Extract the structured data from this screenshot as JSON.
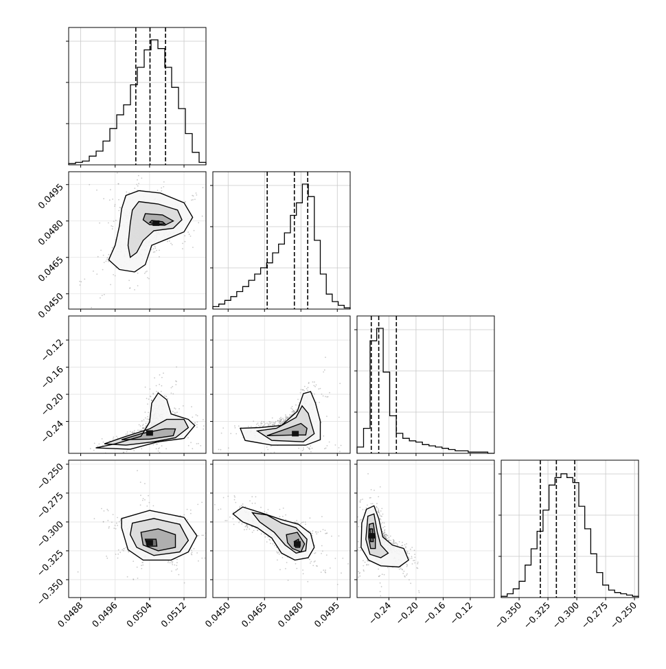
{
  "chart_data": {
    "type": "corner-plot",
    "parameters": [
      {
        "range": [
          0.04852,
          0.05171
        ],
        "ticks": [
          0.0488,
          0.0496,
          0.0504,
          0.0512
        ],
        "tick_labels": [
          "0.0488",
          "0.0496",
          "0.0504",
          "0.0512"
        ],
        "quantiles": [
          0.05008,
          0.05041,
          0.05077
        ],
        "hist_bins": [
          0.01,
          0.02,
          0.03,
          0.07,
          0.11,
          0.19,
          0.29,
          0.4,
          0.48,
          0.64,
          0.78,
          0.92,
          1.0,
          0.93,
          0.78,
          0.62,
          0.45,
          0.25,
          0.1,
          0.02
        ],
        "hist_yticks": [
          0.3,
          0.6,
          0.9
        ]
      },
      {
        "range": [
          0.04437,
          0.05003
        ],
        "ticks": [
          0.045,
          0.0465,
          0.048,
          0.0495
        ],
        "tick_labels": [
          "0.0450",
          "0.0465",
          "0.0480",
          "0.0495"
        ],
        "quantiles": [
          0.04661,
          0.04773,
          0.04828
        ],
        "hist_bins": [
          0.02,
          0.04,
          0.07,
          0.1,
          0.14,
          0.18,
          0.23,
          0.28,
          0.33,
          0.37,
          0.45,
          0.52,
          0.61,
          0.75,
          0.85,
          1.0,
          0.9,
          0.55,
          0.28,
          0.12,
          0.06,
          0.03,
          0.01
        ],
        "hist_yticks": [
          0.3,
          0.6,
          0.9
        ]
      },
      {
        "range": [
          -0.287,
          -0.0845
        ],
        "ticks": [
          -0.24,
          -0.2,
          -0.16,
          -0.12
        ],
        "tick_labels": [
          "−0.24",
          "−0.20",
          "−0.16",
          "−0.12"
        ],
        "quantiles": [
          -0.266,
          -0.255,
          -0.229
        ],
        "hist_bins": [
          0.05,
          0.2,
          0.9,
          1.0,
          0.65,
          0.3,
          0.16,
          0.12,
          0.1,
          0.09,
          0.07,
          0.06,
          0.05,
          0.04,
          0.03,
          0.02,
          0.02,
          0.01,
          0.01,
          0.01,
          0.0
        ],
        "hist_yticks": [
          0.3,
          0.6,
          0.9
        ]
      },
      {
        "range": [
          -0.3655,
          -0.2465
        ],
        "ticks": [
          -0.35,
          -0.325,
          -0.3,
          -0.275,
          -0.25
        ],
        "tick_labels": [
          "−0.350",
          "−0.325",
          "−0.300",
          "−0.275",
          "−0.250"
        ],
        "quantiles": [
          -0.3316,
          -0.3177,
          -0.3018
        ],
        "hist_bins": [
          0.01,
          0.03,
          0.07,
          0.13,
          0.26,
          0.39,
          0.53,
          0.7,
          0.9,
          0.96,
          0.99,
          0.96,
          0.92,
          0.73,
          0.55,
          0.35,
          0.2,
          0.1,
          0.06,
          0.04,
          0.03,
          0.02,
          0.01
        ],
        "hist_yticks": [
          0.3,
          0.6,
          0.9
        ]
      }
    ],
    "pairs": [
      {
        "row": 1,
        "col": 0,
        "mode": [
          0.05055,
          0.04791
        ],
        "contours": [
          [
            [
              0.05015,
              0.04925
            ],
            [
              0.05065,
              0.04915
            ],
            [
              0.0512,
              0.04875
            ],
            [
              0.0514,
              0.04815
            ],
            [
              0.0512,
              0.04755
            ],
            [
              0.0508,
              0.04725
            ],
            [
              0.05045,
              0.047
            ],
            [
              0.0503,
              0.0462
            ],
            [
              0.05005,
              0.0459
            ],
            [
              0.0497,
              0.046
            ],
            [
              0.04945,
              0.0464
            ],
            [
              0.0496,
              0.047
            ],
            [
              0.0497,
              0.0478
            ],
            [
              0.04975,
              0.0485
            ],
            [
              0.04985,
              0.04905
            ]
          ],
          [
            [
              0.05015,
              0.0488
            ],
            [
              0.0506,
              0.0487
            ],
            [
              0.05105,
              0.04845
            ],
            [
              0.05115,
              0.04805
            ],
            [
              0.05095,
              0.0477
            ],
            [
              0.0505,
              0.0476
            ],
            [
              0.05025,
              0.0472
            ],
            [
              0.0501,
              0.0467
            ],
            [
              0.04995,
              0.0465
            ],
            [
              0.0499,
              0.047
            ],
            [
              0.04995,
              0.0479
            ],
            [
              0.05,
              0.04845
            ]
          ],
          [
            [
              0.0503,
              0.0483
            ],
            [
              0.0507,
              0.04825
            ],
            [
              0.05095,
              0.048
            ],
            [
              0.05075,
              0.04782
            ],
            [
              0.0504,
              0.04785
            ],
            [
              0.05025,
              0.04805
            ]
          ],
          [
            [
              0.05045,
              0.04802
            ],
            [
              0.0507,
              0.04797
            ],
            [
              0.05076,
              0.04788
            ],
            [
              0.05055,
              0.04786
            ],
            [
              0.0504,
              0.04794
            ]
          ]
        ]
      },
      {
        "row": 2,
        "col": 0,
        "mode": [
          0.0504,
          -0.257
        ],
        "contours": [
          [
            [
              0.04915,
              -0.279
            ],
            [
              0.0496,
              -0.273
            ],
            [
              0.0502,
              -0.262
            ],
            [
              0.0504,
              -0.241
            ],
            [
              0.05045,
              -0.213
            ],
            [
              0.0506,
              -0.198
            ],
            [
              0.0508,
              -0.208
            ],
            [
              0.0509,
              -0.229
            ],
            [
              0.0513,
              -0.237
            ],
            [
              0.05145,
              -0.246
            ],
            [
              0.0512,
              -0.265
            ],
            [
              0.0506,
              -0.27
            ],
            [
              0.04995,
              -0.281
            ]
          ],
          [
            [
              0.04935,
              -0.273
            ],
            [
              0.04985,
              -0.262
            ],
            [
              0.0504,
              -0.251
            ],
            [
              0.0508,
              -0.237
            ],
            [
              0.0512,
              -0.237
            ],
            [
              0.0513,
              -0.249
            ],
            [
              0.051,
              -0.264
            ],
            [
              0.0505,
              -0.27
            ],
            [
              0.04985,
              -0.275
            ]
          ],
          [
            [
              0.04975,
              -0.267
            ],
            [
              0.0502,
              -0.258
            ],
            [
              0.05075,
              -0.251
            ],
            [
              0.051,
              -0.251
            ],
            [
              0.05095,
              -0.261
            ],
            [
              0.0504,
              -0.266
            ]
          ]
        ]
      },
      {
        "row": 2,
        "col": 1,
        "mode": [
          0.04777,
          -0.258
        ],
        "contours": [
          [
            [
              0.0455,
              -0.25
            ],
            [
              0.0457,
              -0.268
            ],
            [
              0.0468,
              -0.275
            ],
            [
              0.0482,
              -0.275
            ],
            [
              0.0488,
              -0.267
            ],
            [
              0.0488,
              -0.24
            ],
            [
              0.0486,
              -0.213
            ],
            [
              0.0484,
              -0.196
            ],
            [
              0.0481,
              -0.199
            ],
            [
              0.04785,
              -0.225
            ],
            [
              0.0472,
              -0.246
            ],
            [
              0.0463,
              -0.249
            ]
          ],
          [
            [
              0.0462,
              -0.254
            ],
            [
              0.0468,
              -0.268
            ],
            [
              0.0481,
              -0.27
            ],
            [
              0.04855,
              -0.258
            ],
            [
              0.0483,
              -0.228
            ],
            [
              0.04805,
              -0.217
            ],
            [
              0.0478,
              -0.234
            ],
            [
              0.047,
              -0.25
            ]
          ],
          [
            [
              0.0466,
              -0.261
            ],
            [
              0.0477,
              -0.26
            ],
            [
              0.0482,
              -0.26
            ],
            [
              0.04825,
              -0.25
            ],
            [
              0.048,
              -0.243
            ],
            [
              0.0474,
              -0.251
            ]
          ]
        ]
      },
      {
        "row": 3,
        "col": 0,
        "mode": [
          0.0504,
          -0.318
        ],
        "contours": [
          [
            [
              0.04975,
              -0.297
            ],
            [
              0.0504,
              -0.29
            ],
            [
              0.0512,
              -0.296
            ],
            [
              0.0515,
              -0.312
            ],
            [
              0.0513,
              -0.326
            ],
            [
              0.0509,
              -0.333
            ],
            [
              0.05025,
              -0.333
            ],
            [
              0.0499,
              -0.324
            ],
            [
              0.04975,
              -0.305
            ]
          ],
          [
            [
              0.05,
              -0.301
            ],
            [
              0.0505,
              -0.297
            ],
            [
              0.0511,
              -0.302
            ],
            [
              0.0513,
              -0.316
            ],
            [
              0.0511,
              -0.326
            ],
            [
              0.0505,
              -0.329
            ],
            [
              0.0501,
              -0.322
            ],
            [
              0.04995,
              -0.311
            ]
          ],
          [
            [
              0.0502,
              -0.309
            ],
            [
              0.0506,
              -0.306
            ],
            [
              0.051,
              -0.311
            ],
            [
              0.051,
              -0.322
            ],
            [
              0.0506,
              -0.325
            ],
            [
              0.05025,
              -0.32
            ]
          ],
          [
            [
              0.0503,
              -0.315
            ],
            [
              0.05055,
              -0.315
            ],
            [
              0.05057,
              -0.321
            ],
            [
              0.05035,
              -0.321
            ]
          ]
        ]
      },
      {
        "row": 3,
        "col": 1,
        "mode": [
          0.04785,
          -0.319
        ],
        "contours": [
          [
            [
              0.0452,
              -0.293
            ],
            [
              0.0456,
              -0.287
            ],
            [
              0.0465,
              -0.293
            ],
            [
              0.0472,
              -0.298
            ],
            [
              0.0479,
              -0.302
            ],
            [
              0.0484,
              -0.31
            ],
            [
              0.04855,
              -0.322
            ],
            [
              0.0483,
              -0.331
            ],
            [
              0.04775,
              -0.333
            ],
            [
              0.0472,
              -0.327
            ],
            [
              0.0468,
              -0.314
            ],
            [
              0.0462,
              -0.305
            ],
            [
              0.0456,
              -0.3
            ]
          ],
          [
            [
              0.046,
              -0.292
            ],
            [
              0.0466,
              -0.294
            ],
            [
              0.0472,
              -0.301
            ],
            [
              0.0478,
              -0.305
            ],
            [
              0.04825,
              -0.315
            ],
            [
              0.0482,
              -0.325
            ],
            [
              0.0478,
              -0.327
            ],
            [
              0.04735,
              -0.32
            ],
            [
              0.0469,
              -0.309
            ],
            [
              0.0463,
              -0.3
            ]
          ],
          [
            [
              0.0474,
              -0.311
            ],
            [
              0.04785,
              -0.309
            ],
            [
              0.04815,
              -0.319
            ],
            [
              0.048,
              -0.326
            ],
            [
              0.04765,
              -0.323
            ],
            [
              0.04745,
              -0.318
            ]
          ],
          [
            [
              0.04772,
              -0.317
            ],
            [
              0.0479,
              -0.315
            ],
            [
              0.04795,
              -0.322
            ],
            [
              0.04778,
              -0.322
            ]
          ]
        ]
      },
      {
        "row": 3,
        "col": 2,
        "mode": [
          -0.265,
          -0.312
        ],
        "contours": [
          [
            [
              -0.273,
              -0.289
            ],
            [
              -0.262,
              -0.286
            ],
            [
              -0.255,
              -0.297
            ],
            [
              -0.249,
              -0.313
            ],
            [
              -0.235,
              -0.32
            ],
            [
              -0.218,
              -0.323
            ],
            [
              -0.211,
              -0.333
            ],
            [
              -0.225,
              -0.339
            ],
            [
              -0.252,
              -0.338
            ],
            [
              -0.27,
              -0.333
            ],
            [
              -0.281,
              -0.322
            ],
            [
              -0.28,
              -0.301
            ]
          ],
          [
            [
              -0.271,
              -0.295
            ],
            [
              -0.262,
              -0.293
            ],
            [
              -0.257,
              -0.309
            ],
            [
              -0.252,
              -0.32
            ],
            [
              -0.241,
              -0.327
            ],
            [
              -0.252,
              -0.331
            ],
            [
              -0.268,
              -0.328
            ],
            [
              -0.274,
              -0.315
            ]
          ],
          [
            [
              -0.269,
              -0.302
            ],
            [
              -0.263,
              -0.301
            ],
            [
              -0.26,
              -0.313
            ],
            [
              -0.26,
              -0.323
            ],
            [
              -0.267,
              -0.323
            ],
            [
              -0.27,
              -0.313
            ]
          ],
          [
            [
              -0.268,
              -0.306
            ],
            [
              -0.264,
              -0.306
            ],
            [
              -0.263,
              -0.317
            ],
            [
              -0.267,
              -0.317
            ]
          ]
        ]
      }
    ]
  }
}
